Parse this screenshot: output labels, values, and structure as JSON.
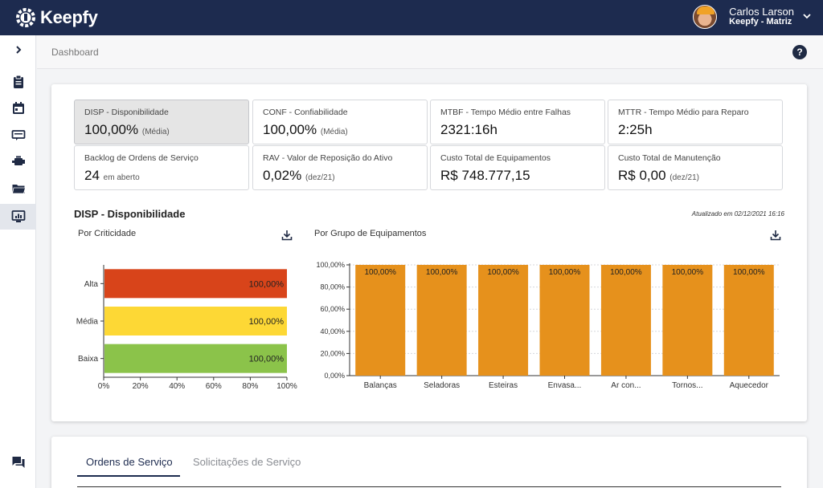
{
  "app": {
    "name": "Keepfy"
  },
  "user": {
    "name": "Carlos Larson",
    "org": "Keepfy - Matriz"
  },
  "breadcrumb": "Dashboard",
  "help_label": "?",
  "kpis": [
    {
      "label": "DISP - Disponibilidade",
      "value": "100,00%",
      "sub": "(Média)",
      "selected": true
    },
    {
      "label": "CONF - Confiabilidade",
      "value": "100,00%",
      "sub": "(Média)"
    },
    {
      "label": "MTBF - Tempo Médio entre Falhas",
      "value": "2321:16h",
      "sub": ""
    },
    {
      "label": "MTTR - Tempo Médio para Reparo",
      "value": "2:25h",
      "sub": ""
    },
    {
      "label": "Backlog de Ordens de Serviço",
      "value": "24",
      "sub": "em aberto"
    },
    {
      "label": "RAV - Valor de Reposição do Ativo",
      "value": "0,02%",
      "sub": "(dez/21)"
    },
    {
      "label": "Custo Total de Equipamentos",
      "value": "R$ 748.777,15",
      "sub": ""
    },
    {
      "label": "Custo Total de Manutenção",
      "value": "R$ 0,00",
      "sub": "(dez/21)"
    }
  ],
  "section": {
    "title": "DISP - Disponibilidade",
    "updated": "Atualizado em 02/12/2021 16:16",
    "left_title": "Por Criticidade",
    "right_title": "Por Grupo de Equipamentos"
  },
  "tabs": [
    {
      "label": "Ordens de Serviço",
      "active": true
    },
    {
      "label": "Solicitações de Serviço",
      "active": false
    }
  ],
  "colors": {
    "navy": "#1d2b4f",
    "alta": "#d8441a",
    "media": "#fdd835",
    "baixa": "#8bc34a",
    "group_bar": "#e6911c"
  },
  "chart_data": [
    {
      "type": "bar",
      "orientation": "horizontal",
      "title": "Por Criticidade",
      "categories": [
        "Alta",
        "Média",
        "Baixa"
      ],
      "values": [
        100,
        100,
        100
      ],
      "data_labels": [
        "100,00%",
        "100,00%",
        "100,00%"
      ],
      "xlim": [
        0,
        100
      ],
      "xticks": [
        "0%",
        "20%",
        "40%",
        "60%",
        "80%",
        "100%"
      ],
      "bar_colors": [
        "#d8441a",
        "#fdd835",
        "#8bc34a"
      ]
    },
    {
      "type": "bar",
      "title": "Por Grupo de Equipamentos",
      "categories": [
        "Balanças",
        "Seladoras",
        "Esteiras",
        "Envasa...",
        "Ar con...",
        "Tornos...",
        "Aquecedor"
      ],
      "values": [
        100,
        100,
        100,
        100,
        100,
        100,
        100
      ],
      "data_labels": [
        "100,00%",
        "100,00%",
        "100,00%",
        "100,00%",
        "100,00%",
        "100,00%",
        "100,00%"
      ],
      "ylim": [
        0,
        100
      ],
      "yticks": [
        "0,00%",
        "20,00%",
        "40,00%",
        "60,00%",
        "80,00%",
        "100,00%"
      ],
      "bar_color": "#e6911c",
      "grid": true
    }
  ]
}
